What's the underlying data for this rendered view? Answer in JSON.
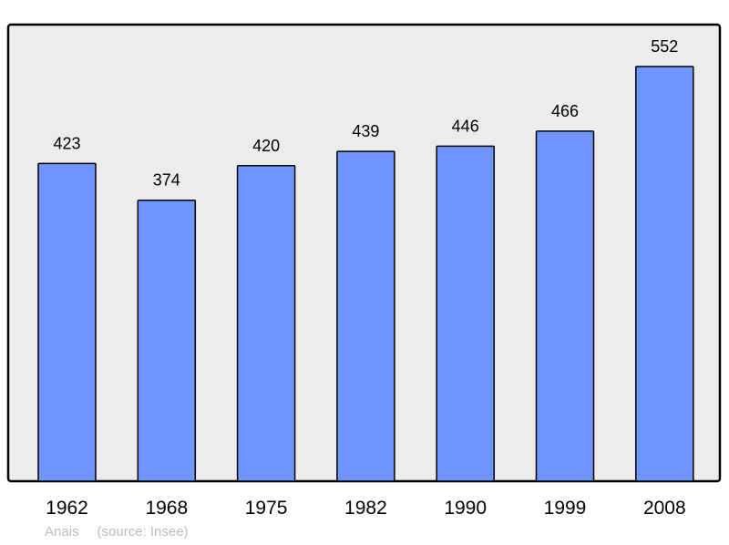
{
  "chart_data": {
    "type": "bar",
    "categories": [
      "1962",
      "1968",
      "1975",
      "1982",
      "1990",
      "1999",
      "2008"
    ],
    "values": [
      423,
      374,
      420,
      439,
      446,
      466,
      552
    ],
    "title": "",
    "xlabel": "",
    "ylabel": "",
    "ylim": [
      0,
      552
    ],
    "grid": false,
    "data_labels": true,
    "colors": {
      "bar": "#6f96ff",
      "background": "#ececec",
      "frame": "#000000"
    }
  },
  "credit": {
    "author": "Anais",
    "source": "(source: Insee)"
  }
}
